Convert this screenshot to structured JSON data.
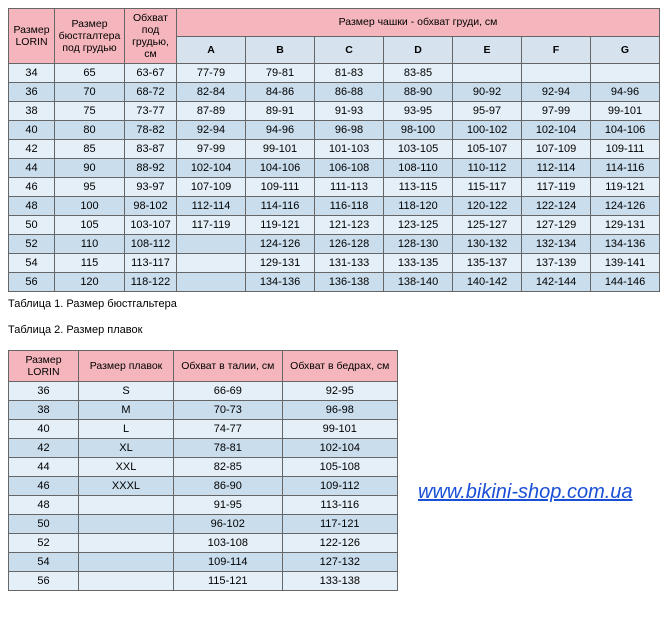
{
  "table1": {
    "caption": "Таблица 1. Размер бюстгальтера",
    "header": {
      "size": "Размер LORIN",
      "underbust": "Размер бюстгалтера под грудью",
      "underbust_girth": "Обхват под грудью, см",
      "cup_header": "Размер чашки - обхват груди, см",
      "cups": [
        "A",
        "B",
        "C",
        "D",
        "E",
        "F",
        "G"
      ]
    },
    "rows": [
      {
        "size": "34",
        "ub": "65",
        "ubg": "63-67",
        "c": [
          "77-79",
          "79-81",
          "81-83",
          "83-85",
          "",
          "",
          ""
        ]
      },
      {
        "size": "36",
        "ub": "70",
        "ubg": "68-72",
        "c": [
          "82-84",
          "84-86",
          "86-88",
          "88-90",
          "90-92",
          "92-94",
          "94-96"
        ]
      },
      {
        "size": "38",
        "ub": "75",
        "ubg": "73-77",
        "c": [
          "87-89",
          "89-91",
          "91-93",
          "93-95",
          "95-97",
          "97-99",
          "99-101"
        ]
      },
      {
        "size": "40",
        "ub": "80",
        "ubg": "78-82",
        "c": [
          "92-94",
          "94-96",
          "96-98",
          "98-100",
          "100-102",
          "102-104",
          "104-106"
        ]
      },
      {
        "size": "42",
        "ub": "85",
        "ubg": "83-87",
        "c": [
          "97-99",
          "99-101",
          "101-103",
          "103-105",
          "105-107",
          "107-109",
          "109-111"
        ]
      },
      {
        "size": "44",
        "ub": "90",
        "ubg": "88-92",
        "c": [
          "102-104",
          "104-106",
          "106-108",
          "108-110",
          "110-112",
          "112-114",
          "114-116"
        ]
      },
      {
        "size": "46",
        "ub": "95",
        "ubg": "93-97",
        "c": [
          "107-109",
          "109-111",
          "111-113",
          "113-115",
          "115-117",
          "117-119",
          "119-121"
        ]
      },
      {
        "size": "48",
        "ub": "100",
        "ubg": "98-102",
        "c": [
          "112-114",
          "114-116",
          "116-118",
          "118-120",
          "120-122",
          "122-124",
          "124-126"
        ]
      },
      {
        "size": "50",
        "ub": "105",
        "ubg": "103-107",
        "c": [
          "117-119",
          "119-121",
          "121-123",
          "123-125",
          "125-127",
          "127-129",
          "129-131"
        ]
      },
      {
        "size": "52",
        "ub": "110",
        "ubg": "108-112",
        "c": [
          "",
          "124-126",
          "126-128",
          "128-130",
          "130-132",
          "132-134",
          "134-136"
        ]
      },
      {
        "size": "54",
        "ub": "115",
        "ubg": "113-117",
        "c": [
          "",
          "129-131",
          "131-133",
          "133-135",
          "135-137",
          "137-139",
          "139-141"
        ]
      },
      {
        "size": "56",
        "ub": "120",
        "ubg": "118-122",
        "c": [
          "",
          "134-136",
          "136-138",
          "138-140",
          "140-142",
          "142-144",
          "144-146"
        ]
      }
    ]
  },
  "table2": {
    "caption": "Таблица 2. Размер плавок",
    "header": {
      "size": "Размер LORIN",
      "briefs": "Размер плавок",
      "waist": "Обхват в талии, см",
      "hips": "Обхват в бедрах, см"
    },
    "rows": [
      {
        "size": "36",
        "br": "S",
        "w": "66-69",
        "h": "92-95"
      },
      {
        "size": "38",
        "br": "M",
        "w": "70-73",
        "h": "96-98"
      },
      {
        "size": "40",
        "br": "L",
        "w": "74-77",
        "h": "99-101"
      },
      {
        "size": "42",
        "br": "XL",
        "w": "78-81",
        "h": "102-104"
      },
      {
        "size": "44",
        "br": "XXL",
        "w": "82-85",
        "h": "105-108"
      },
      {
        "size": "46",
        "br": "XXXL",
        "w": "86-90",
        "h": "109-112"
      },
      {
        "size": "48",
        "br": "",
        "w": "91-95",
        "h": "113-116"
      },
      {
        "size": "50",
        "br": "",
        "w": "96-102",
        "h": "117-121"
      },
      {
        "size": "52",
        "br": "",
        "w": "103-108",
        "h": "122-126"
      },
      {
        "size": "54",
        "br": "",
        "w": "109-114",
        "h": "127-132"
      },
      {
        "size": "56",
        "br": "",
        "w": "115-121",
        "h": "133-138"
      }
    ]
  },
  "link": "www.bikini-shop.com.ua",
  "colors": {
    "header_bg": "#f4b6bc",
    "subheader_bg": "#d6e3ef",
    "row_odd": "#e4eff7",
    "row_even": "#c9dded",
    "border": "#666666",
    "link": "#1a4fd6"
  }
}
